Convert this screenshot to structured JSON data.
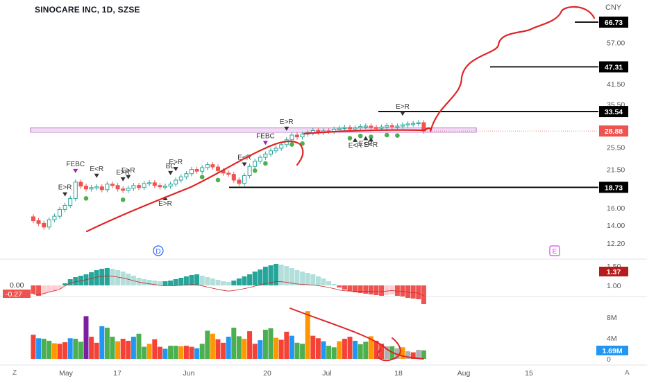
{
  "header": {
    "title": "SINOCARE INC, 1D, SZSE",
    "currency": "CNY"
  },
  "footer": {
    "left_corner": "Z",
    "right_corner": "A"
  },
  "colors": {
    "up": "#26a69a",
    "down": "#ef5350",
    "drawing": "#e02424",
    "band": "#ce93d8",
    "signal_purple": "#9c27b0",
    "marker": "#4caf50",
    "volume_orange": "#ff9800",
    "volume_red": "#f44336",
    "volume_green": "#4caf50",
    "volume_blue": "#2196f3",
    "volume_gray": "#b0b0b0",
    "volume_purple": "#7b1fa2"
  },
  "chart_data": [
    {
      "type": "candlestick",
      "title": "SINOCARE INC, 1D, SZSE",
      "x_axis_labels": [
        "May",
        "17",
        "Jun",
        "20",
        "Jul",
        "18",
        "Aug",
        "15"
      ],
      "y_axis_scale": "log",
      "y_axis_ticks": [
        "57.00",
        "41.50",
        "35.50",
        "25.50",
        "21.50",
        "16.00",
        "14.00",
        "12.20"
      ],
      "ylim": [
        11.5,
        75
      ],
      "last_price": "28.88",
      "horizontal_levels": [
        "66.73",
        "47.31",
        "33.54",
        "18.73"
      ],
      "signal_labels": [
        "E>R",
        "FEBC",
        "E<R",
        "E>R",
        "E>R",
        "E>R",
        "BC",
        "E>R",
        "E<R",
        "FEBC",
        "E>R",
        "E<R",
        "E<R",
        "E<R",
        "E>R"
      ],
      "event_markers": [
        "D",
        "E"
      ],
      "approx_price_path": [
        14.5,
        14.2,
        13.8,
        14.6,
        15.0,
        15.8,
        16.3,
        17.2,
        19.5,
        18.9,
        18.5,
        18.7,
        18.8,
        18.4,
        19.2,
        19.0,
        18.5,
        18.3,
        18.6,
        19.0,
        18.7,
        19.3,
        19.4,
        19.0,
        18.8,
        18.9,
        19.2,
        19.8,
        20.3,
        20.8,
        21.5,
        21.2,
        21.8,
        22.3,
        21.9,
        21.3,
        20.9,
        20.7,
        19.8,
        19.3,
        20.5,
        22.0,
        22.9,
        23.6,
        24.2,
        24.8,
        25.3,
        26.0,
        27.0,
        28.0,
        27.6,
        28.2,
        28.5,
        29.0,
        28.6,
        28.9,
        28.8,
        29.3,
        29.5,
        29.7,
        29.4,
        29.6,
        29.9,
        30.0,
        29.7,
        29.5,
        29.8,
        30.1,
        29.9,
        30.0,
        30.3,
        30.5,
        30.6,
        30.8,
        28.9
      ]
    },
    {
      "type": "bar",
      "name": "oscillator",
      "y_axis_ticks": [
        "1.50",
        "1.00"
      ],
      "left_labels": [
        "0.00",
        "-0.27"
      ],
      "last_value": "1.37",
      "values": [
        -0.12,
        -0.15,
        -0.13,
        -0.1,
        -0.08,
        -0.05,
        0.03,
        0.09,
        0.12,
        0.14,
        0.16,
        0.19,
        0.22,
        0.24,
        0.25,
        0.24,
        0.22,
        0.2,
        0.17,
        0.14,
        0.11,
        0.09,
        0.08,
        0.07,
        0.06,
        0.06,
        0.07,
        0.09,
        0.11,
        0.13,
        0.15,
        0.16,
        0.14,
        0.12,
        0.1,
        0.08,
        0.06,
        0.05,
        0.07,
        0.1,
        0.13,
        0.16,
        0.2,
        0.23,
        0.27,
        0.29,
        0.31,
        0.3,
        0.28,
        0.25,
        0.22,
        0.2,
        0.18,
        0.16,
        0.13,
        0.1,
        0.06,
        0.02,
        -0.03,
        -0.06,
        -0.08,
        -0.1,
        -0.11,
        -0.12,
        -0.13,
        -0.14,
        -0.15,
        -0.14,
        -0.13,
        -0.15,
        -0.16,
        -0.18,
        -0.19,
        -0.2,
        -0.27
      ]
    },
    {
      "type": "bar",
      "name": "volume",
      "y_axis_ticks": [
        "8M",
        "4M",
        "0"
      ],
      "last_value": "1.69M",
      "values": [
        4.8,
        4.1,
        4.0,
        3.6,
        3.1,
        3.0,
        3.3,
        4.1,
        4.0,
        3.4,
        8.5,
        4.4,
        3.2,
        6.5,
        6.2,
        4.4,
        3.5,
        4.0,
        3.6,
        4.4,
        5.0,
        2.4,
        3.0,
        3.9,
        2.4,
        2.0,
        2.6,
        2.6,
        2.5,
        2.6,
        2.4,
        2.1,
        3.0,
        5.6,
        5.0,
        3.9,
        3.2,
        4.4,
        6.2,
        4.5,
        4.0,
        5.5,
        3.0,
        3.7,
        5.8,
        6.1,
        4.2,
        3.8,
        5.4,
        4.6,
        3.2,
        3.0,
        9.5,
        4.6,
        4.1,
        3.5,
        2.6,
        2.3,
        3.5,
        4.0,
        4.4,
        3.6,
        2.9,
        3.4,
        4.5,
        3.6,
        3.0,
        2.5,
        2.5,
        2.1,
        2.3,
        1.5,
        1.3,
        1.8,
        1.69
      ]
    }
  ]
}
